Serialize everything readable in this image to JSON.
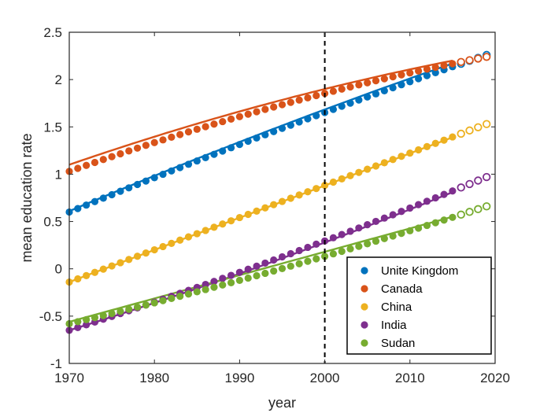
{
  "chart_data": {
    "type": "scatter",
    "xlabel": "year",
    "ylabel": "mean education rate",
    "xlim": [
      1970,
      2020
    ],
    "ylim": [
      -1,
      2.5
    ],
    "xticks": [
      "1970",
      "1980",
      "1990",
      "2000",
      "2010",
      "2020"
    ],
    "yticks": [
      "-1",
      "-0.5",
      "0",
      "0.5",
      "1",
      "1.5",
      "2",
      "2.5"
    ],
    "grid": false,
    "legend_position": "bottom-right",
    "reference_line": {
      "x": 2000,
      "style": "dashed"
    },
    "observed_range": [
      1970,
      2015
    ],
    "projected_range": [
      2015,
      2019
    ],
    "series": [
      {
        "name": "Unite Kingdom",
        "color": "#0072BD",
        "start": 0.6,
        "end": 2.26,
        "curve": 0.15,
        "fit_start": 0.61,
        "fit_end": 2.17,
        "fit_curve": 0.15
      },
      {
        "name": "Canada",
        "color": "#D95319",
        "start": 1.03,
        "end": 2.24,
        "curve": 0.35,
        "fit_start": 1.1,
        "fit_end": 2.2,
        "fit_curve": 0.3
      },
      {
        "name": "China",
        "color": "#EDB120",
        "start": -0.14,
        "end": 1.53,
        "curve": 0.0,
        "fit_start": -0.14,
        "fit_end": 1.39,
        "fit_curve": 0.0
      },
      {
        "name": "India",
        "color": "#7E2F8E",
        "start": -0.65,
        "end": 0.97,
        "curve": -0.2,
        "fit_start": -0.65,
        "fit_end": 0.81,
        "fit_curve": -0.2
      },
      {
        "name": "Sudan",
        "color": "#77AC30",
        "start": -0.58,
        "end": 0.66,
        "curve": -0.2,
        "fit_start": -0.56,
        "fit_end": 0.55,
        "fit_curve": 0.0
      }
    ]
  }
}
